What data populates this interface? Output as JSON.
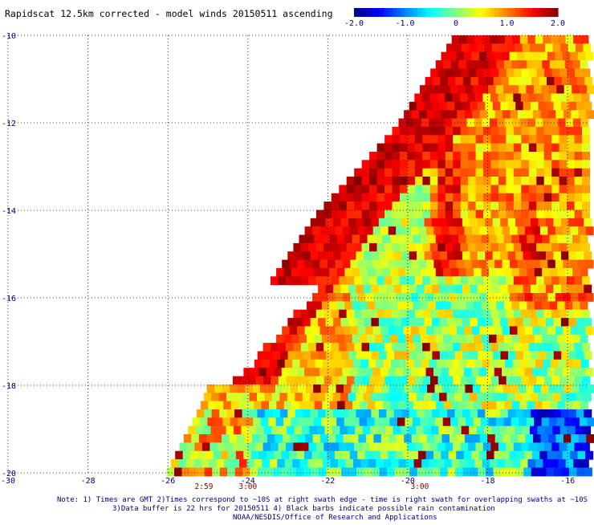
{
  "chart_data": {
    "type": "heatmap",
    "title": "Rapidscat 12.5km corrected - model winds 20150511 ascending",
    "xlim": [
      -30,
      -15.5
    ],
    "ylim": [
      -20,
      -10
    ],
    "x_ticks": [
      -30,
      -28,
      -26,
      -24,
      -22,
      -20,
      -18,
      -16
    ],
    "x_tick_labels": [
      "-30",
      "-28",
      "-26",
      "-24",
      "-22",
      "-20",
      "-18",
      "-16"
    ],
    "y_ticks": [
      -10,
      -12,
      -14,
      -16,
      -18,
      -20
    ],
    "y_tick_labels": [
      "-10",
      "-12",
      "-14",
      "-16",
      "-18",
      "-20"
    ],
    "grid": true,
    "colorbar": {
      "min": -2.0,
      "max": 2.0,
      "ticks": [
        -2.0,
        -1.0,
        0,
        1.0,
        2.0
      ],
      "tick_labels": [
        "-2.0",
        "-1.0",
        "0",
        "1.0",
        "2.0"
      ],
      "colors": [
        "#00007f",
        "#0000ff",
        "#0080ff",
        "#00ffff",
        "#80ff80",
        "#ffff00",
        "#ff8000",
        "#ff0000",
        "#7f0000"
      ]
    },
    "cell_size_deg": 0.19,
    "swath": {
      "strips": [
        {
          "lat_top": -10.0,
          "lat_bottom": -12.0,
          "lon_left_top": -18.9,
          "lon_left_bottom": -20.3
        },
        {
          "lat_top": -12.0,
          "lat_bottom": -14.0,
          "lon_left_top": -20.3,
          "lon_left_bottom": -22.3
        },
        {
          "lat_top": -14.0,
          "lat_bottom": -16.0,
          "lon_left_top": -22.3,
          "lon_left_bottom": -23.8
        },
        {
          "lat_top": -16.0,
          "lat_bottom": -17.2,
          "lon_left_top": -23.8,
          "lon_left_bottom": -24.7
        },
        {
          "lat_top": -17.2,
          "lat_bottom": -18.4,
          "lon_left_top": -24.7,
          "lon_left_bottom": -25.2
        },
        {
          "lat_top": -18.4,
          "lat_bottom": -20.0,
          "lon_left_top": -25.2,
          "lon_left_bottom": -26.1
        }
      ],
      "right_edge_lon": -15.5,
      "trailing_edge": {
        "lat_top": -15.6,
        "lat_bottom": -20.0,
        "lon_top": -22.2,
        "lon_bottom": -17.8
      },
      "narrow_arm": {
        "lat_top": -17.8,
        "lat_bottom": -20.0,
        "lon_right_top": -24.5,
        "lon_right_bottom": -25.4
      }
    },
    "anomaly_zones": [
      {
        "name": "strong positive band along leading edge",
        "lat": [
          -10.0,
          -17.8
        ],
        "lon_from_edge": 1.6,
        "value_range": [
          1.0,
          2.0
        ]
      },
      {
        "name": "mixed yellow-orange region",
        "lat": [
          -10.0,
          -16.0
        ],
        "lon": [
          -19.5,
          -15.5
        ],
        "value_range": [
          0.2,
          1.5
        ]
      },
      {
        "name": "green-cyan interior",
        "lat": [
          -15.0,
          -20.0
        ],
        "lon": [
          -22.0,
          -15.5
        ],
        "value_range": [
          -0.8,
          0.6
        ]
      },
      {
        "name": "blue-cyan southeast corner",
        "lat": [
          -18.5,
          -20.0
        ],
        "lon": [
          -17.0,
          -15.5
        ],
        "value_range": [
          -1.8,
          -0.5
        ]
      }
    ],
    "pass_times": [
      {
        "label": "2:59",
        "lon": -25.1
      },
      {
        "label": "3:00",
        "lon": -24.0
      },
      {
        "label": "3:00",
        "lon": -19.7
      }
    ]
  },
  "footer": {
    "line1": "Note: 1) Times are GMT 2)Times correspond to ~10S at right swath edge - time is right swath for overlapping swaths at ~10S",
    "line2": "3)Data buffer is 22 hrs for 20150511 4) Black barbs indicate possible rain contamination",
    "line3": "NOAA/NESDIS/Office of Research and Applications"
  }
}
